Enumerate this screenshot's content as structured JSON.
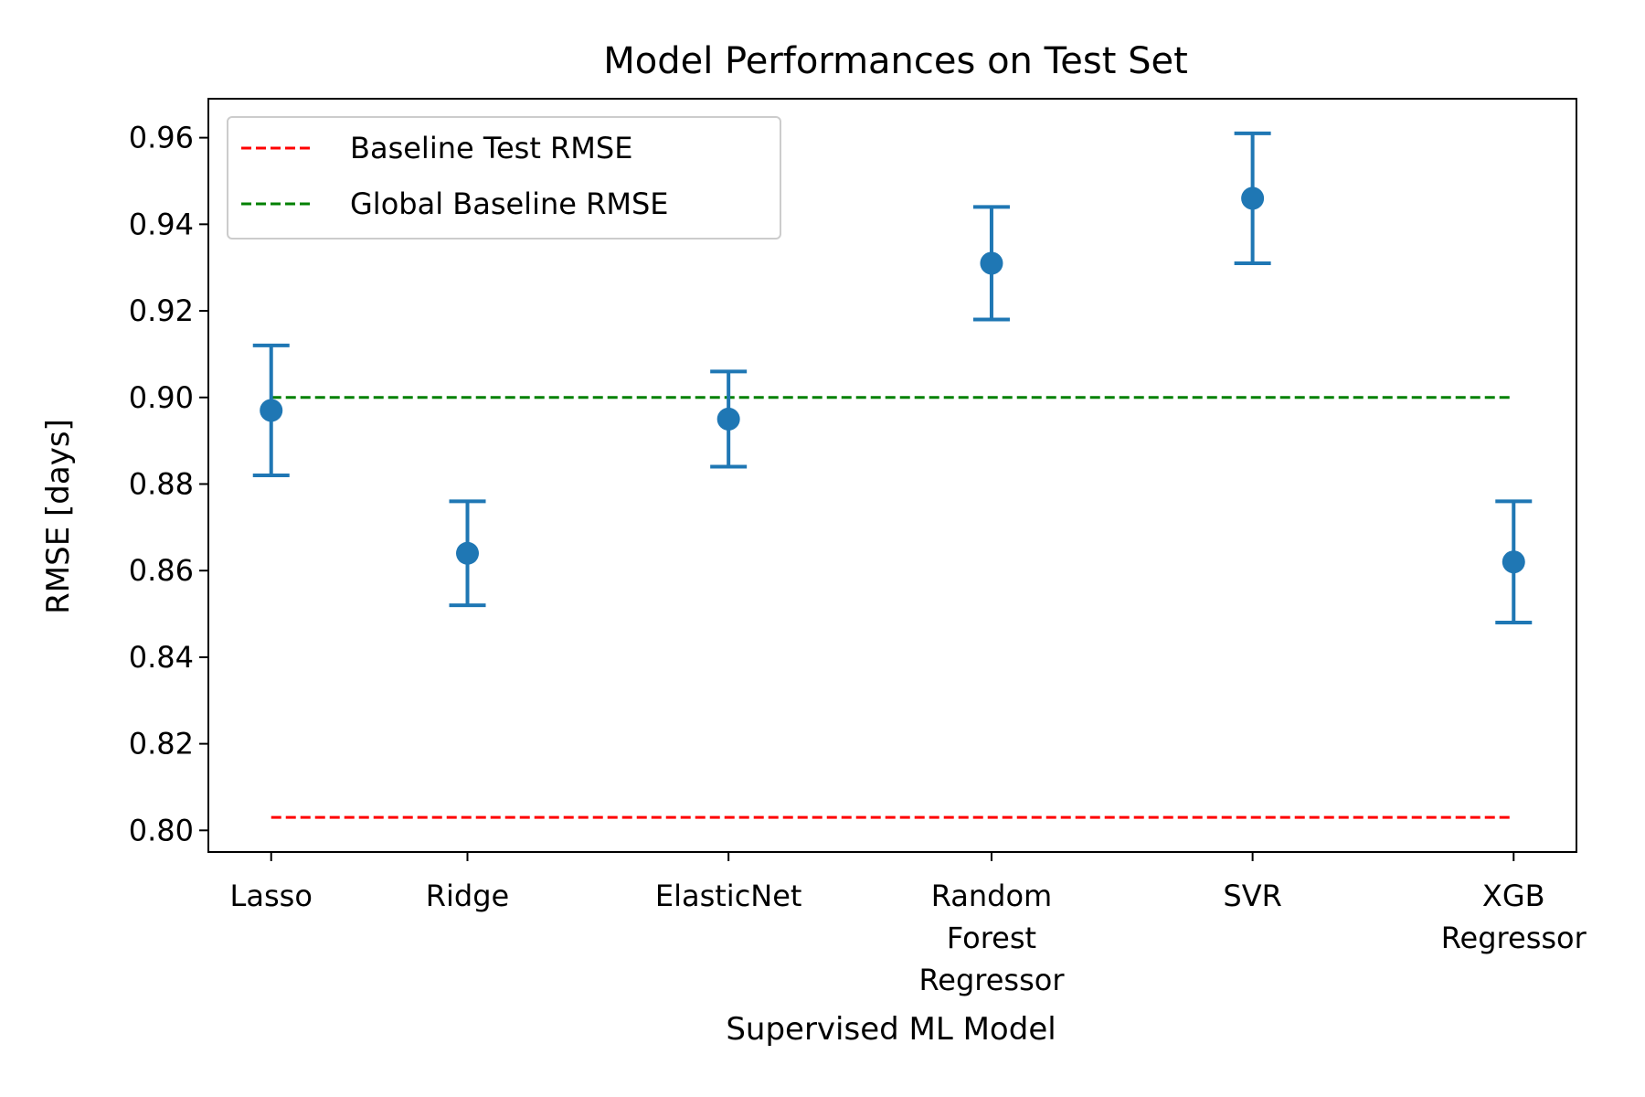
{
  "chart_data": {
    "type": "scatter",
    "title": "Model Performances on Test Set",
    "xlabel": "Supervised ML Model",
    "ylabel": "RMSE [days]",
    "categories": [
      [
        "Lasso"
      ],
      [
        "Ridge"
      ],
      [
        "ElasticNet"
      ],
      [
        "Random",
        "Forest",
        "Regressor"
      ],
      [
        "SVR"
      ],
      [
        "XGB",
        "Regressor"
      ]
    ],
    "x_positions": [
      1,
      2,
      3.33,
      4.67,
      6,
      7.33
    ],
    "xlim": [
      0.68,
      7.65
    ],
    "ylim": [
      0.795,
      0.969
    ],
    "yticks": [
      "0.80",
      "0.82",
      "0.84",
      "0.86",
      "0.88",
      "0.90",
      "0.92",
      "0.94",
      "0.96"
    ],
    "series": [
      {
        "values": [
          0.897,
          0.864,
          0.895,
          0.931,
          0.946,
          0.862
        ],
        "lower": [
          0.882,
          0.852,
          0.884,
          0.918,
          0.931,
          0.848
        ],
        "upper": [
          0.912,
          0.876,
          0.906,
          0.944,
          0.961,
          0.876
        ],
        "color": "#1f77b4"
      }
    ],
    "reference_lines": [
      {
        "name": "Baseline Test RMSE",
        "value": 0.803,
        "color": "#ff0000"
      },
      {
        "name": "Global Baseline RMSE",
        "value": 0.9,
        "color": "#008000"
      }
    ],
    "legend_position": "top-left",
    "grid": false
  }
}
